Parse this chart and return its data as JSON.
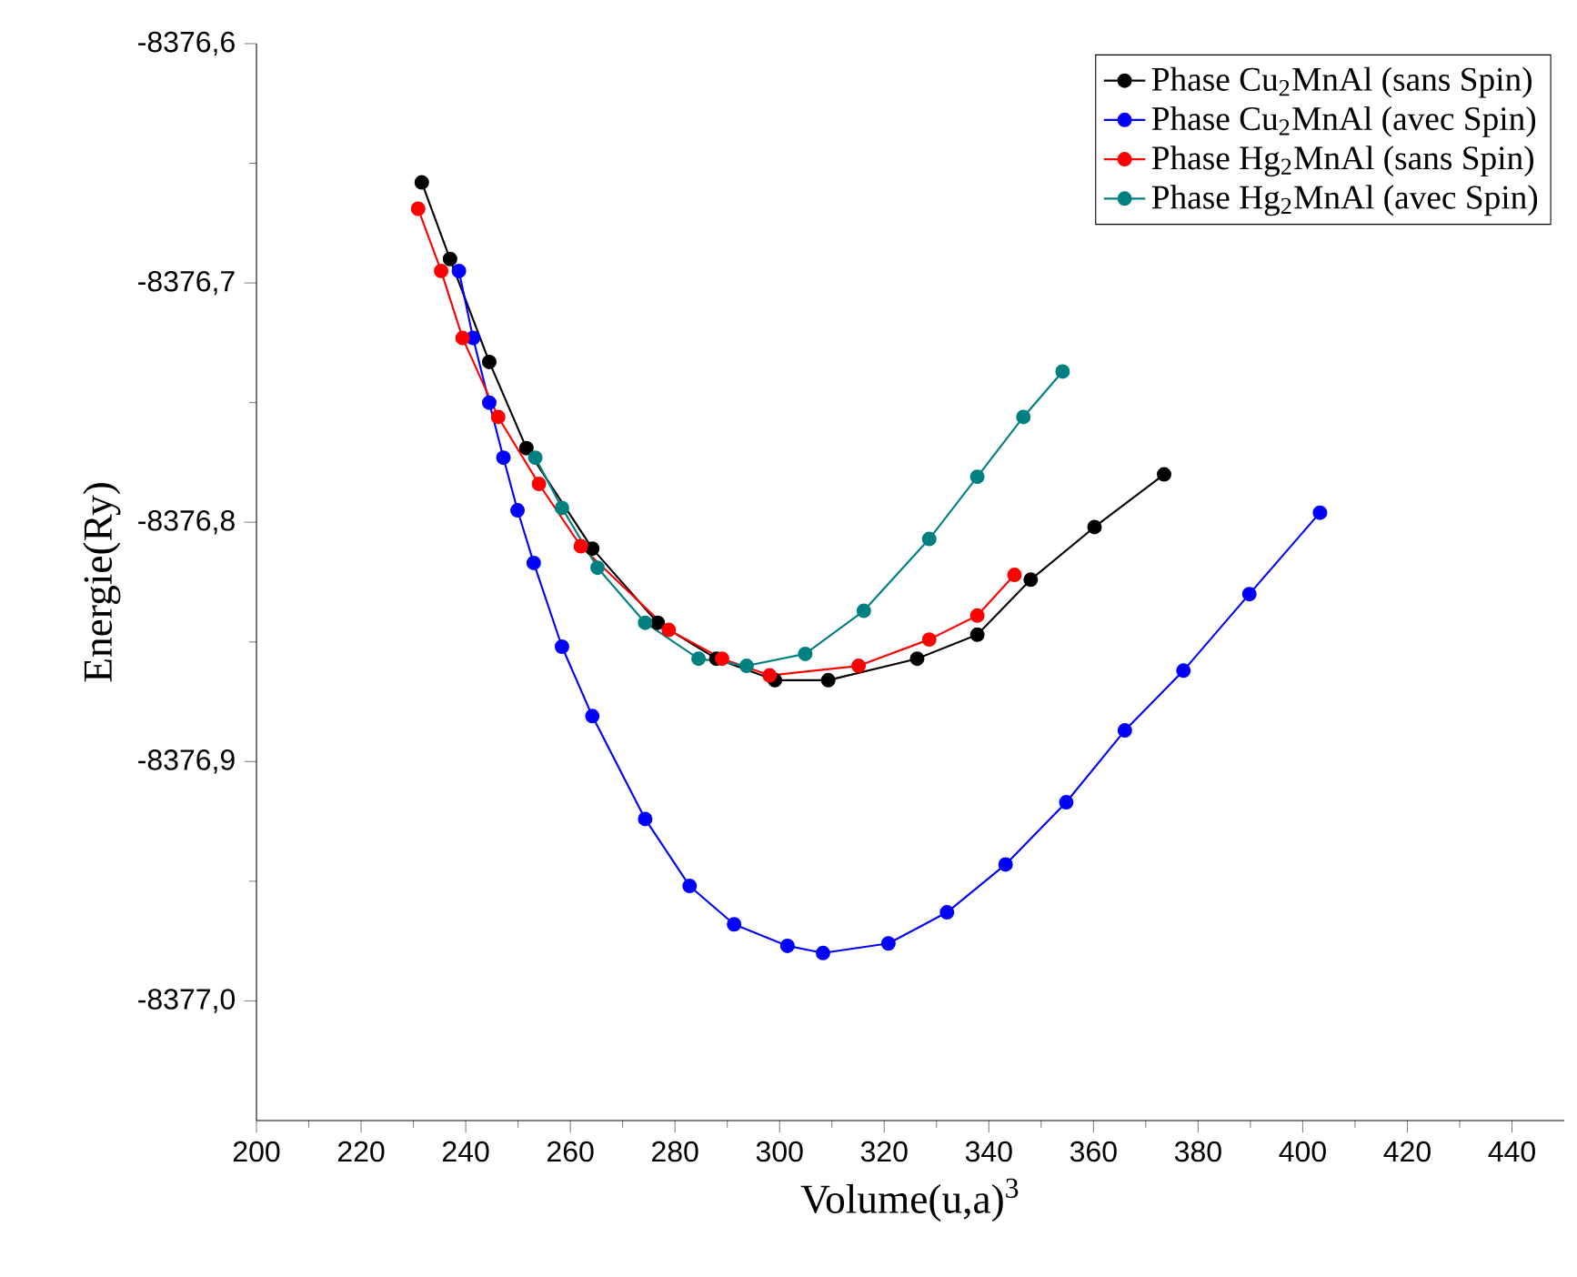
{
  "chart_data": {
    "type": "line",
    "xlabel": "Volume(u,a)$^{3}$",
    "ylabel": "Energie(Ry)",
    "xlim": [
      200,
      450
    ],
    "ylim": [
      -8377.05,
      -8376.6
    ],
    "xticks": [
      200,
      220,
      240,
      260,
      280,
      300,
      320,
      340,
      360,
      380,
      400,
      420,
      440
    ],
    "yticks": [
      {
        "value": -8376.6,
        "label": "-8376,6"
      },
      {
        "value": -8376.7,
        "label": "-8376,7"
      },
      {
        "value": -8376.8,
        "label": "-8376,8"
      },
      {
        "value": -8376.9,
        "label": "-8376,9"
      },
      {
        "value": -8377.0,
        "label": "-8377,0"
      }
    ],
    "legend": "top right",
    "marker": "circle",
    "line_style": "solid",
    "series": [
      {
        "name": "Phase Cu$_{2}$MnAl (sans Spin)",
        "color": "#000000",
        "x": [
          231.6,
          237.0,
          244.5,
          251.6,
          264.2,
          276.7,
          287.9,
          299.1,
          309.3,
          326.3,
          337.8,
          348.0,
          360.2,
          373.5
        ],
        "values": [
          -8376.658,
          -8376.69,
          -8376.733,
          -8376.769,
          -8376.811,
          -8376.842,
          -8376.857,
          -8376.866,
          -8376.866,
          -8376.857,
          -8376.847,
          -8376.824,
          -8376.802,
          -8376.78
        ]
      },
      {
        "name": "Phase Cu$_{2}$MnAl (avec Spin)",
        "color": "#0000ff",
        "x": [
          238.7,
          241.4,
          244.5,
          247.2,
          249.9,
          253.0,
          258.4,
          264.2,
          274.3,
          282.8,
          291.3,
          301.5,
          308.3,
          320.8,
          332.0,
          343.2,
          354.8,
          366.0,
          377.2,
          389.8,
          403.3
        ],
        "values": [
          -8376.695,
          -8376.723,
          -8376.75,
          -8376.773,
          -8376.795,
          -8376.817,
          -8376.852,
          -8376.881,
          -8376.924,
          -8376.952,
          -8376.968,
          -8376.977,
          -8376.98,
          -8376.976,
          -8376.963,
          -8376.943,
          -8376.917,
          -8376.887,
          -8376.862,
          -8376.83,
          -8376.796
        ]
      },
      {
        "name": "Phase Hg$_{2}$MnAl (sans Spin)",
        "color": "#ff0000",
        "x": [
          230.9,
          235.3,
          239.4,
          246.2,
          254.0,
          262.0,
          278.8,
          289.0,
          298.1,
          315.1,
          328.6,
          337.8,
          344.9
        ],
        "values": [
          -8376.669,
          -8376.695,
          -8376.723,
          -8376.756,
          -8376.784,
          -8376.81,
          -8376.845,
          -8376.857,
          -8376.864,
          -8376.86,
          -8376.849,
          -8376.839,
          -8376.822
        ]
      },
      {
        "name": "Phase Hg$_{2}$MnAl (avec Spin)",
        "color": "#008080",
        "x": [
          253.3,
          258.4,
          265.2,
          274.3,
          284.5,
          293.7,
          304.9,
          316.1,
          328.6,
          337.8,
          346.6,
          354.1
        ],
        "values": [
          -8376.773,
          -8376.794,
          -8376.819,
          -8376.842,
          -8376.857,
          -8376.86,
          -8376.855,
          -8376.837,
          -8376.807,
          -8376.781,
          -8376.756,
          -8376.737
        ]
      }
    ]
  }
}
